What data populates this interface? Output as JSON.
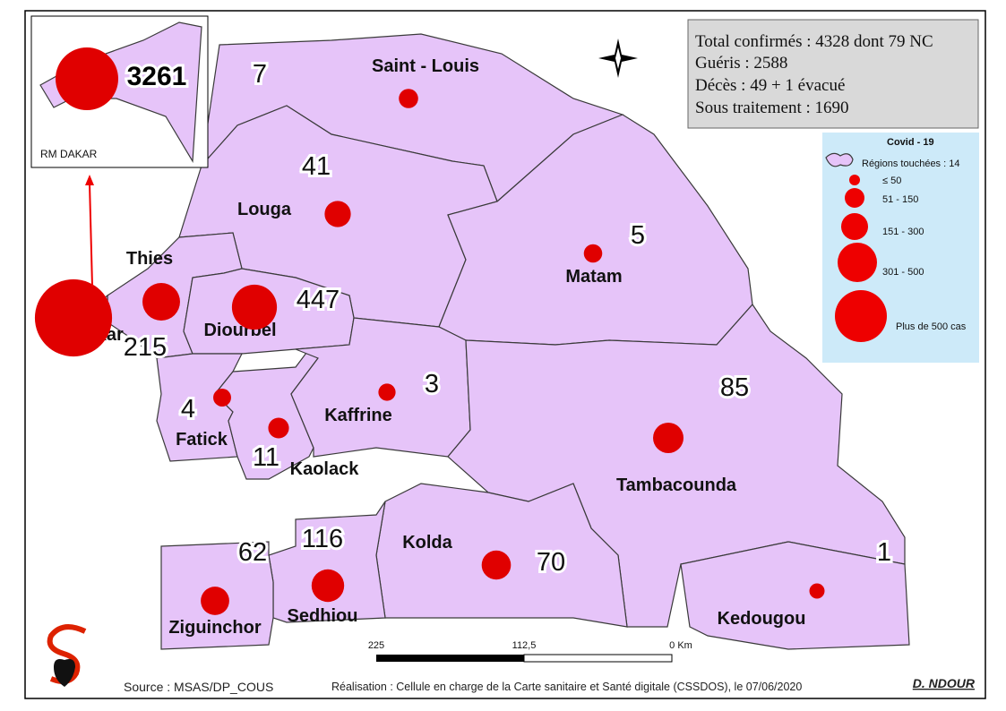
{
  "stats": [
    "Total confirmés : 4328  dont 79  NC",
    "Guéris : 2588",
    "Décès : 49 + 1 évacué",
    "Sous traitement : 1690"
  ],
  "legend": {
    "title": "Covid - 19",
    "area": "Régions touchées : 14",
    "classes": [
      "≤ 50",
      "51 - 150",
      "151 - 300",
      "301 - 500",
      "Plus de 500 cas"
    ]
  },
  "inset": {
    "label": "RM DAKAR"
  },
  "regions": [
    {
      "name": "Saint - Louis",
      "cases": 7
    },
    {
      "name": "Louga",
      "cases": 41
    },
    {
      "name": "Matam",
      "cases": 5
    },
    {
      "name": "Thies",
      "cases": 215
    },
    {
      "name": "Diourbel",
      "cases": 447
    },
    {
      "name": "Fatick",
      "cases": 4
    },
    {
      "name": "Kaolack",
      "cases": 11
    },
    {
      "name": "Kaffrine",
      "cases": 3
    },
    {
      "name": "Tambacounda",
      "cases": 85
    },
    {
      "name": "Kolda",
      "cases": 70
    },
    {
      "name": "Sedhiou",
      "cases": 116
    },
    {
      "name": "Ziguinchor",
      "cases": 62
    },
    {
      "name": "Kedougou",
      "cases": 1
    },
    {
      "name": "Dakar",
      "cases": 3261
    }
  ],
  "scale": [
    "225",
    "112,5",
    "0 Km"
  ],
  "footer": {
    "source": "Source : MSAS/DP_COUS",
    "credit": "Réalisation : Cellule en charge de la Carte sanitaire et Santé digitale (CSSDOS), le 07/06/2020",
    "author": "D. NDOUR"
  }
}
